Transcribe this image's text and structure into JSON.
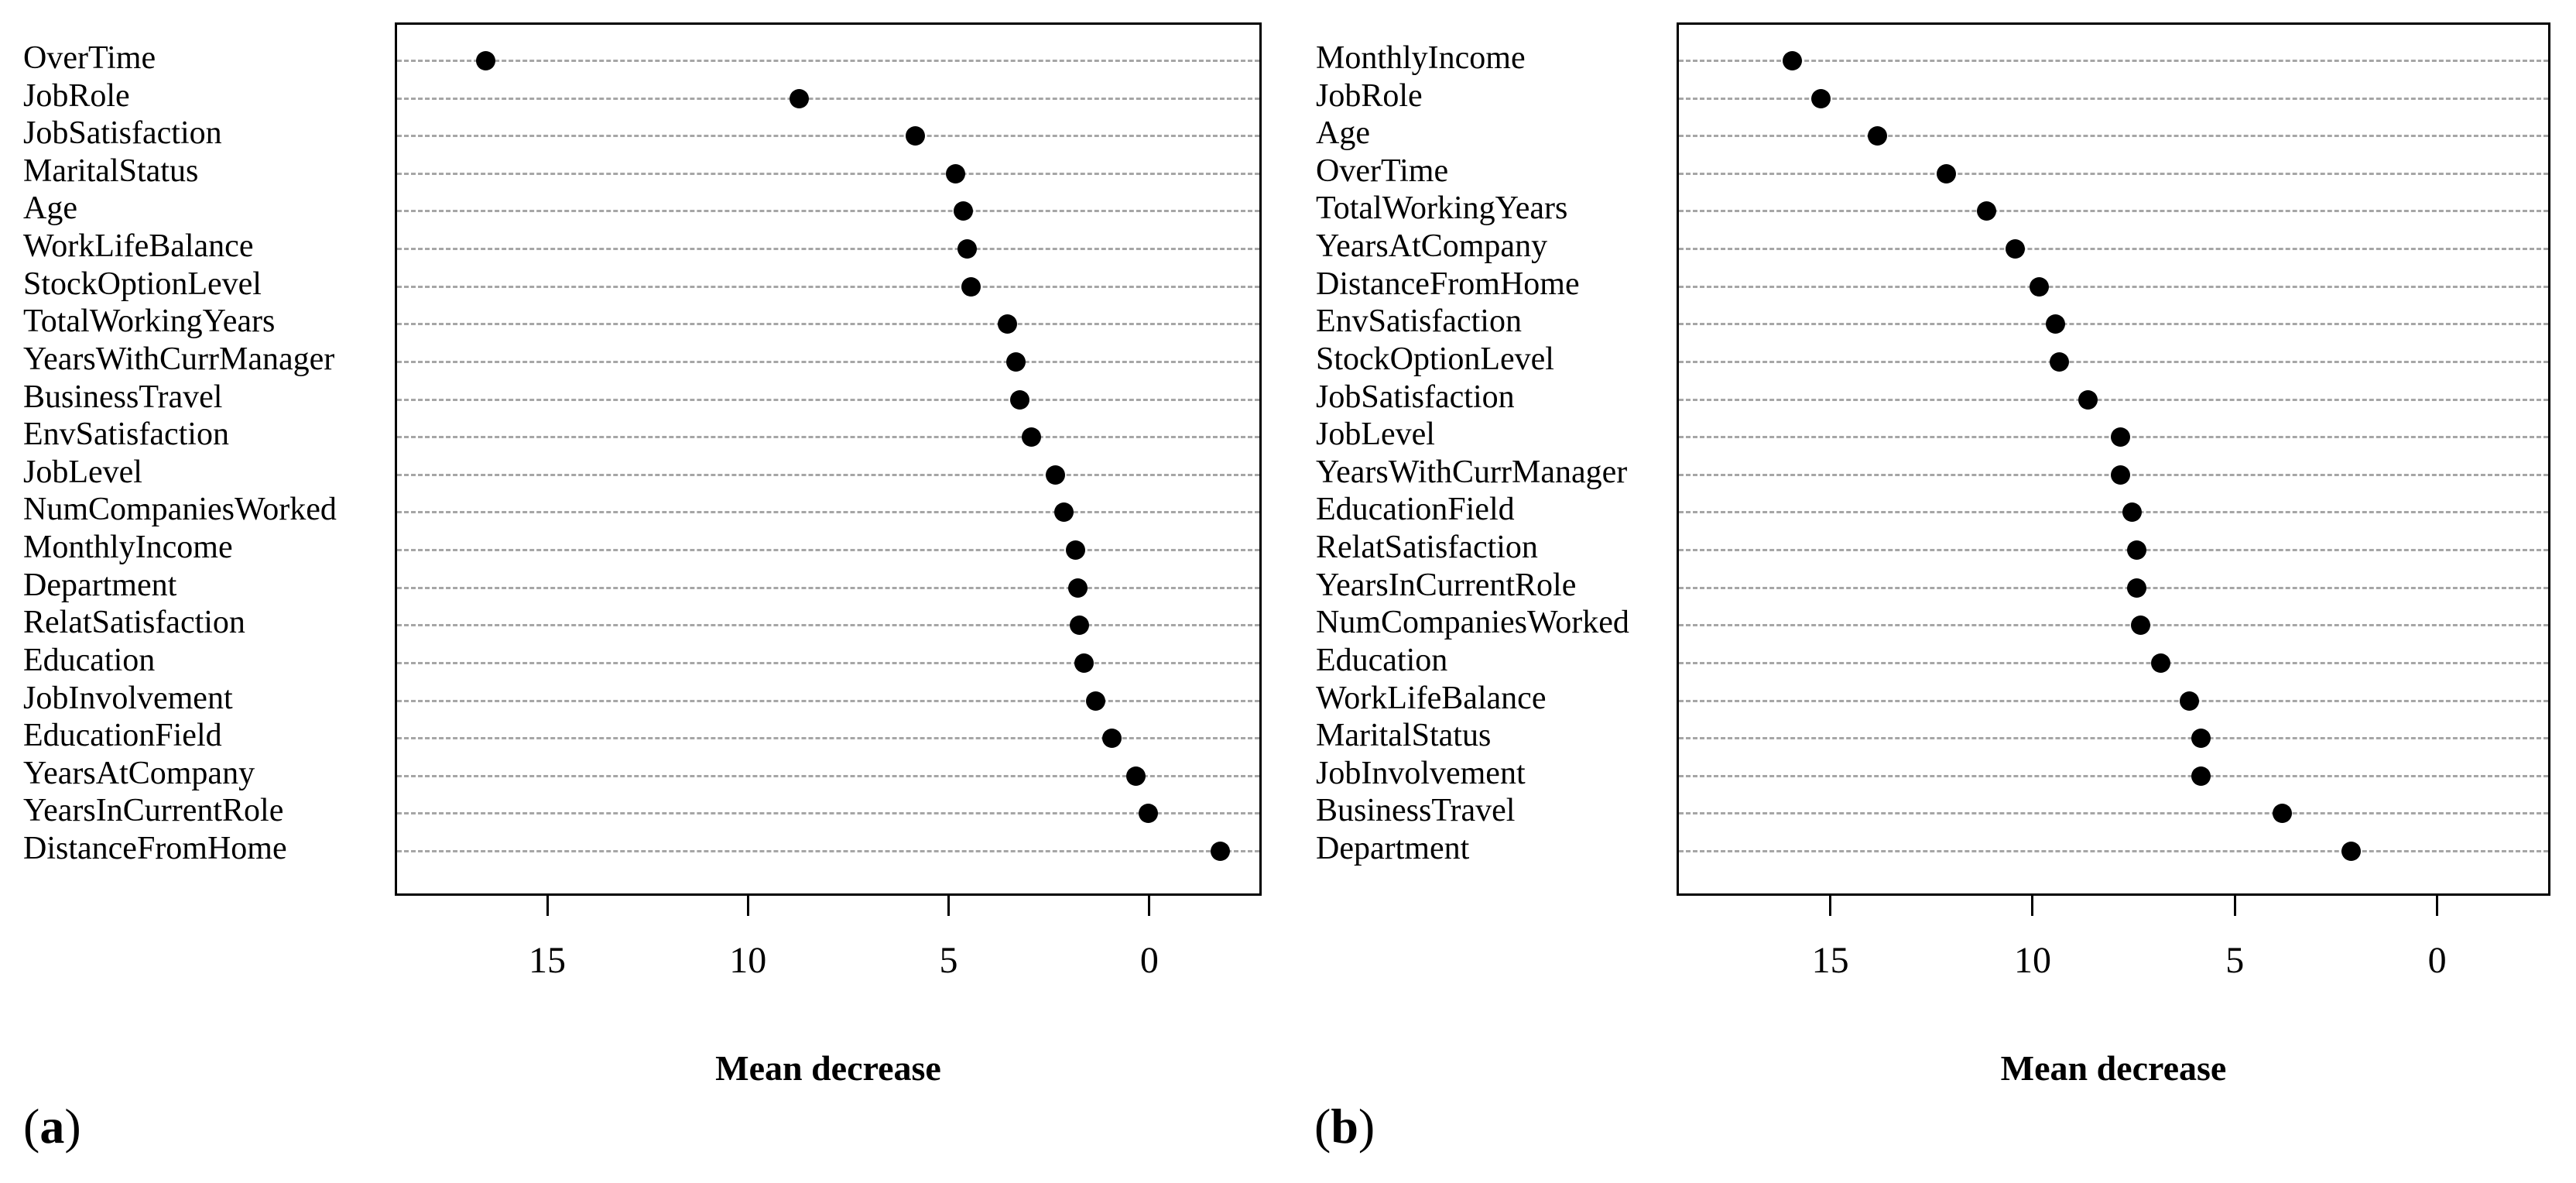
{
  "colors": {
    "dot": "#000000",
    "gridline": "#a6a6a6",
    "box_border": "#000000",
    "background": "#ffffff",
    "text": "#000000"
  },
  "chart_data": [
    {
      "type": "scatter",
      "variant": "cleveland-dot-plot",
      "caption_open": "(",
      "caption_letter": "a",
      "caption_close": ")",
      "title": "",
      "xlabel": "Mean decrease",
      "x_ticks": [
        15,
        10,
        5,
        0
      ],
      "xlim_left_to_right": [
        18.8,
        -2.8
      ],
      "axis_direction": "reversed",
      "grid": "horizontal-dashed",
      "legend": "none",
      "marker": "filled-black-dot",
      "categories_top_to_bottom": [
        "OverTime",
        "JobRole",
        "JobSatisfaction",
        "MaritalStatus",
        "Age",
        "WorkLifeBalance",
        "StockOptionLevel",
        "TotalWorkingYears",
        "YearsWithCurrManager",
        "BusinessTravel",
        "EnvSatisfaction",
        "JobLevel",
        "NumCompaniesWorked",
        "MonthlyIncome",
        "Department",
        "RelatSatisfaction",
        "Education",
        "JobInvolvement",
        "EducationField",
        "YearsAtCompany",
        "YearsInCurrentRole",
        "DistanceFromHome"
      ],
      "values": [
        16.6,
        8.8,
        5.9,
        4.9,
        4.7,
        4.6,
        4.5,
        3.6,
        3.4,
        3.3,
        3.0,
        2.4,
        2.2,
        1.9,
        1.85,
        1.8,
        1.7,
        1.4,
        1.0,
        0.4,
        0.1,
        -1.7
      ]
    },
    {
      "type": "scatter",
      "variant": "cleveland-dot-plot",
      "caption_open": "(",
      "caption_letter": "b",
      "caption_close": ")",
      "title": "",
      "xlabel": "Mean decrease",
      "x_ticks": [
        15,
        10,
        5,
        0
      ],
      "xlim_left_to_right": [
        18.8,
        -2.8
      ],
      "axis_direction": "reversed",
      "grid": "horizontal-dashed",
      "legend": "none",
      "marker": "filled-black-dot",
      "categories_top_to_bottom": [
        "MonthlyIncome",
        "JobRole",
        "Age",
        "OverTime",
        "TotalWorkingYears",
        "YearsAtCompany",
        "DistanceFromHome",
        "EnvSatisfaction",
        "StockOptionLevel",
        "JobSatisfaction",
        "JobLevel",
        "YearsWithCurrManager",
        "EducationField",
        "RelatSatisfaction",
        "YearsInCurrentRole",
        "NumCompaniesWorked",
        "Education",
        "WorkLifeBalance",
        "MaritalStatus",
        "JobInvolvement",
        "BusinessTravel",
        "Department"
      ],
      "values": [
        16.0,
        15.3,
        13.9,
        12.2,
        11.2,
        10.5,
        9.9,
        9.5,
        9.4,
        8.7,
        7.9,
        7.9,
        7.6,
        7.5,
        7.5,
        7.4,
        6.9,
        6.2,
        5.9,
        5.9,
        3.9,
        2.2
      ]
    }
  ]
}
